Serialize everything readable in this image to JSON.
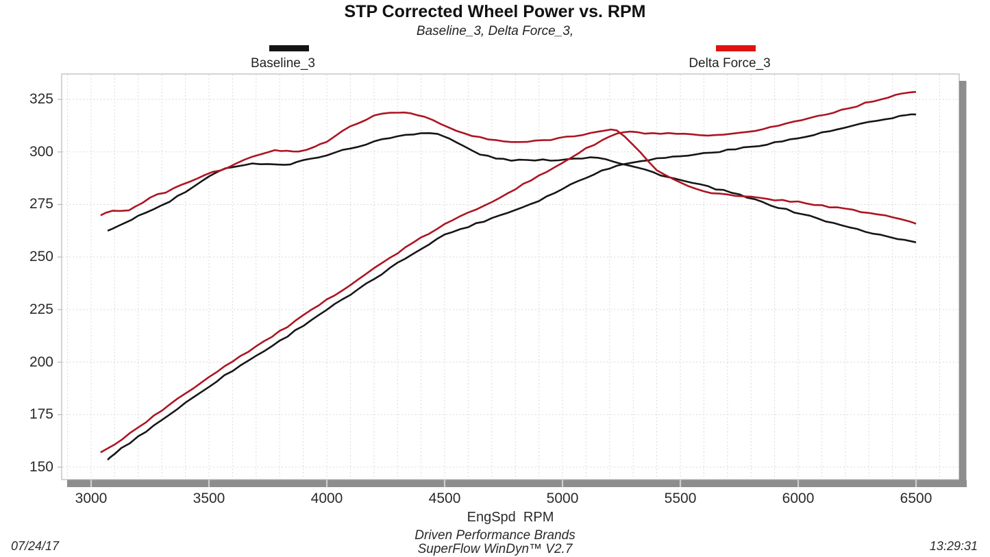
{
  "header": {
    "title": "STP Corrected Wheel Power vs. RPM",
    "subtitle": "Baseline_3, Delta Force_3,"
  },
  "legend": [
    {
      "label": "Baseline_3",
      "swatch_color": "#141414"
    },
    {
      "label": "Delta Force_3",
      "swatch_color": "#df1212"
    }
  ],
  "footer": {
    "date": "07/24/17",
    "time": "13:29:31",
    "brand_line1": "Driven Performance Brands",
    "brand_line2": "SuperFlow WinDyn™ V2.7"
  },
  "colors": {
    "baseline_curve": "#161616",
    "delta_curve": "#ad1422",
    "grid": "#dcd8d8",
    "frame": "#b7b7b7",
    "shadow_bar": "#8d8d8d",
    "tick_notch": "#cfcfcf"
  },
  "chart_data": {
    "type": "line",
    "title": "STP Corrected Wheel Power vs. RPM",
    "subtitle": "Baseline_3, Delta Force_3,",
    "xlabel": "EngSpd  RPM",
    "ylabel": "",
    "grid": "on",
    "legend_position": "top",
    "xlim": [
      2875,
      6683
    ],
    "ylim": [
      144.1,
      337.1
    ],
    "x_ticks": [
      3000,
      3500,
      4000,
      4500,
      5000,
      5500,
      6000,
      6500
    ],
    "y_ticks": [
      150,
      175,
      200,
      225,
      250,
      275,
      300,
      325
    ],
    "x_minor_grid_step": 100,
    "y_grid_step": 25,
    "series": [
      {
        "name": "Baseline_3 power",
        "run": "Baseline_3",
        "color": "#161616",
        "points": [
          [
            3070,
            153.5
          ],
          [
            3100,
            156.5
          ],
          [
            3200,
            164.5
          ],
          [
            3300,
            172.5
          ],
          [
            3400,
            180.5
          ],
          [
            3500,
            188.5
          ],
          [
            3600,
            196
          ],
          [
            3700,
            203
          ],
          [
            3800,
            210
          ],
          [
            3900,
            217.5
          ],
          [
            4000,
            225
          ],
          [
            4100,
            232
          ],
          [
            4200,
            239.5
          ],
          [
            4300,
            247
          ],
          [
            4400,
            254
          ],
          [
            4500,
            260.5
          ],
          [
            4600,
            264.5
          ],
          [
            4700,
            268.5
          ],
          [
            4800,
            272.5
          ],
          [
            4900,
            277
          ],
          [
            5000,
            282.5
          ],
          [
            5100,
            288
          ],
          [
            5200,
            292.3
          ],
          [
            5300,
            295.3
          ],
          [
            5400,
            296.8
          ],
          [
            5500,
            298
          ],
          [
            5600,
            299.3
          ],
          [
            5700,
            300.8
          ],
          [
            5800,
            302.5
          ],
          [
            5900,
            304.5
          ],
          [
            6000,
            306.5
          ],
          [
            6100,
            309
          ],
          [
            6200,
            311.5
          ],
          [
            6300,
            314
          ],
          [
            6400,
            316.3
          ],
          [
            6480,
            317.9
          ],
          [
            6500,
            317.7
          ]
        ]
      },
      {
        "name": "Baseline_3 torque",
        "run": "Baseline_3",
        "color": "#161616",
        "points": [
          [
            3070,
            262.5
          ],
          [
            3120,
            265
          ],
          [
            3200,
            269.5
          ],
          [
            3300,
            274.5
          ],
          [
            3400,
            281
          ],
          [
            3500,
            288
          ],
          [
            3570,
            292
          ],
          [
            3650,
            294
          ],
          [
            3750,
            294.5
          ],
          [
            3820,
            293.8
          ],
          [
            3900,
            295.8
          ],
          [
            4000,
            298.7
          ],
          [
            4100,
            301.7
          ],
          [
            4200,
            304.8
          ],
          [
            4300,
            307.5
          ],
          [
            4400,
            309
          ],
          [
            4470,
            308.5
          ],
          [
            4550,
            304.5
          ],
          [
            4650,
            299
          ],
          [
            4750,
            296.5
          ],
          [
            4850,
            296
          ],
          [
            4950,
            296.2
          ],
          [
            5050,
            296.8
          ],
          [
            5150,
            297.5
          ],
          [
            5250,
            294.5
          ],
          [
            5350,
            291.5
          ],
          [
            5450,
            288
          ],
          [
            5550,
            285.2
          ],
          [
            5650,
            282.5
          ],
          [
            5750,
            279.5
          ],
          [
            5850,
            276
          ],
          [
            5950,
            272.5
          ],
          [
            6050,
            269.5
          ],
          [
            6150,
            266
          ],
          [
            6250,
            263.2
          ],
          [
            6350,
            260.5
          ],
          [
            6450,
            258.2
          ],
          [
            6500,
            257
          ]
        ]
      },
      {
        "name": "Delta Force_3 power",
        "run": "Delta Force_3",
        "color": "#ad1422",
        "points": [
          [
            3040,
            157
          ],
          [
            3100,
            161
          ],
          [
            3200,
            169
          ],
          [
            3300,
            177
          ],
          [
            3400,
            185
          ],
          [
            3500,
            193
          ],
          [
            3600,
            200.5
          ],
          [
            3700,
            207.5
          ],
          [
            3800,
            214.5
          ],
          [
            3900,
            222
          ],
          [
            4000,
            229.5
          ],
          [
            4100,
            237
          ],
          [
            4200,
            244.5
          ],
          [
            4300,
            252
          ],
          [
            4400,
            259
          ],
          [
            4500,
            265.5
          ],
          [
            4600,
            271
          ],
          [
            4700,
            276.5
          ],
          [
            4800,
            282.5
          ],
          [
            4900,
            288.5
          ],
          [
            5000,
            295
          ],
          [
            5100,
            301.5
          ],
          [
            5200,
            307.2
          ],
          [
            5260,
            309.4
          ],
          [
            5350,
            308.9
          ],
          [
            5450,
            308.6
          ],
          [
            5550,
            308.1
          ],
          [
            5650,
            307.7
          ],
          [
            5750,
            308.8
          ],
          [
            5850,
            311
          ],
          [
            5950,
            313.5
          ],
          [
            6050,
            316.2
          ],
          [
            6150,
            319
          ],
          [
            6250,
            322
          ],
          [
            6350,
            325.2
          ],
          [
            6440,
            327.8
          ],
          [
            6500,
            328.6
          ]
        ]
      },
      {
        "name": "Delta Force_3 torque",
        "run": "Delta Force_3",
        "color": "#ad1422",
        "points": [
          [
            3040,
            269.8
          ],
          [
            3090,
            272.2
          ],
          [
            3160,
            272.5
          ],
          [
            3250,
            278
          ],
          [
            3350,
            282.5
          ],
          [
            3450,
            287.5
          ],
          [
            3550,
            291.5
          ],
          [
            3650,
            296
          ],
          [
            3750,
            300
          ],
          [
            3830,
            300.8
          ],
          [
            3880,
            300.4
          ],
          [
            3950,
            302.5
          ],
          [
            4000,
            305
          ],
          [
            4100,
            312
          ],
          [
            4200,
            317
          ],
          [
            4300,
            318.8
          ],
          [
            4380,
            318
          ],
          [
            4450,
            315
          ],
          [
            4550,
            310
          ],
          [
            4650,
            306.8
          ],
          [
            4750,
            305
          ],
          [
            4850,
            304.8
          ],
          [
            4950,
            306
          ],
          [
            5050,
            307.8
          ],
          [
            5150,
            309.5
          ],
          [
            5230,
            310
          ],
          [
            5300,
            303.5
          ],
          [
            5400,
            291.5
          ],
          [
            5500,
            285.5
          ],
          [
            5600,
            281.5
          ],
          [
            5700,
            279.5
          ],
          [
            5800,
            278.4
          ],
          [
            5900,
            277.3
          ],
          [
            6000,
            276.2
          ],
          [
            6100,
            274.5
          ],
          [
            6200,
            272.8
          ],
          [
            6300,
            271
          ],
          [
            6400,
            269
          ],
          [
            6470,
            267
          ],
          [
            6500,
            265.8
          ]
        ]
      }
    ]
  }
}
